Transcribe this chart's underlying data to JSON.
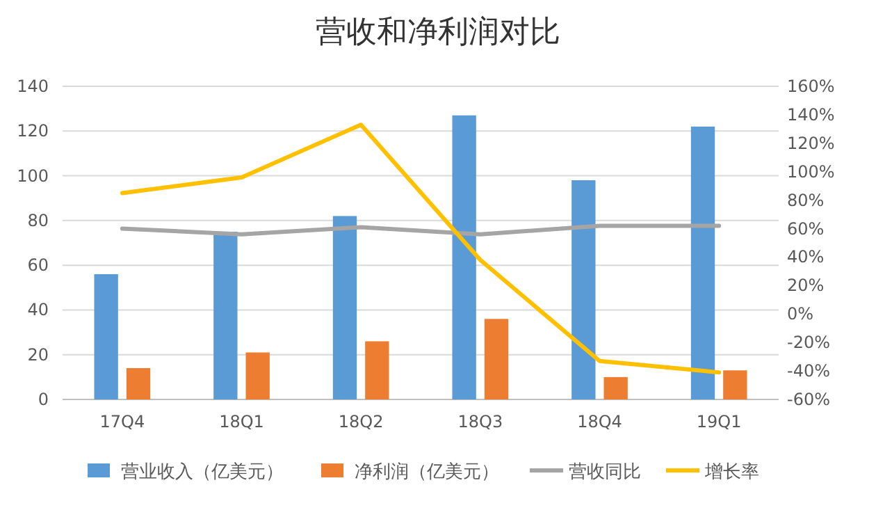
{
  "chart_data": {
    "type": "bar",
    "title": "营收和净利润对比",
    "categories": [
      "17Q4",
      "18Q1",
      "18Q2",
      "18Q3",
      "18Q4",
      "19Q1"
    ],
    "series": [
      {
        "name": "营业收入（亿美元）",
        "color": "#5b9bd5",
        "values": [
          56,
          75,
          82,
          127,
          98,
          122
        ]
      },
      {
        "name": "净利润（亿美元）",
        "color": "#ed7d31",
        "values": [
          14,
          21,
          26,
          36,
          10,
          13
        ]
      },
      {
        "name": "营收同比",
        "type": "line",
        "axis": "y2",
        "color": "#a5a5a5",
        "values": [
          60,
          56,
          61,
          56,
          62,
          62
        ]
      },
      {
        "name": "增长率",
        "type": "line",
        "axis": "y2",
        "color": "#ffc000",
        "values": [
          85,
          96,
          133,
          38,
          -33,
          -41
        ]
      }
    ],
    "ylim": [
      0,
      140
    ],
    "yticks": [
      0,
      20,
      40,
      60,
      80,
      100,
      120,
      140
    ],
    "y2lim": [
      -60,
      160
    ],
    "y2ticks": [
      {
        "value": -60,
        "label": "-60%"
      },
      {
        "value": -40,
        "label": "-40%"
      },
      {
        "value": -20,
        "label": "-20%"
      },
      {
        "value": 0,
        "label": "0%"
      },
      {
        "value": 20,
        "label": "20%"
      },
      {
        "value": 40,
        "label": "40%"
      },
      {
        "value": 60,
        "label": "60%"
      },
      {
        "value": 80,
        "label": "80%"
      },
      {
        "value": 100,
        "label": "100%"
      },
      {
        "value": 120,
        "label": "120%"
      },
      {
        "value": 140,
        "label": "140%"
      },
      {
        "value": 160,
        "label": "160%"
      }
    ],
    "grid": "y",
    "legend": "bottom"
  }
}
